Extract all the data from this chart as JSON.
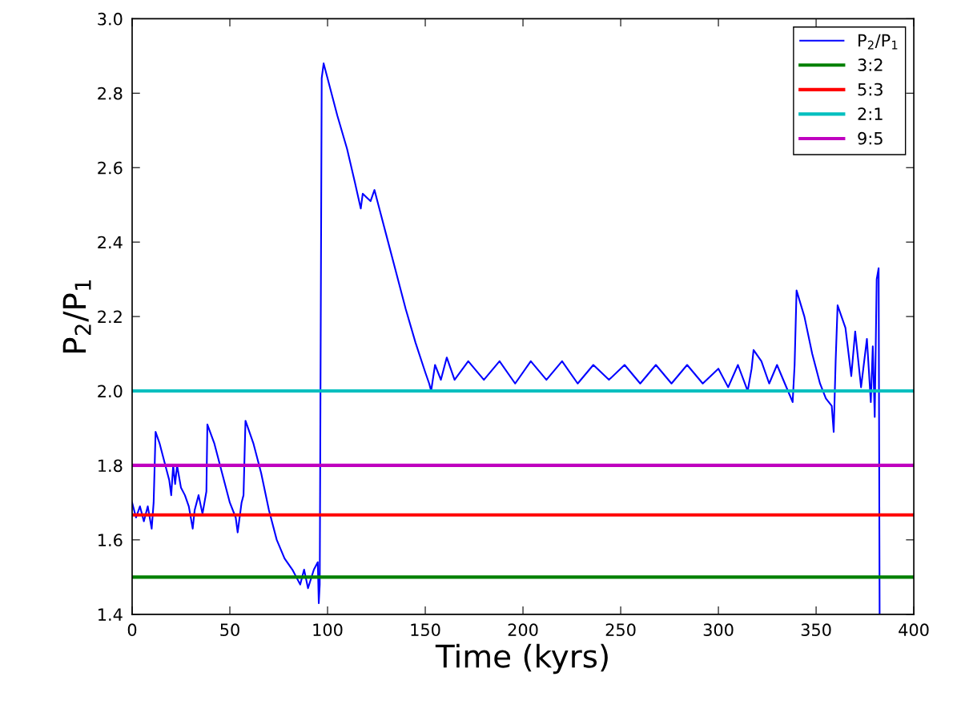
{
  "chart_data": {
    "type": "line",
    "xlabel": "Time (kyrs)",
    "ylabel": "P$_{2}$/P$_{1}$",
    "xlim": [
      0,
      400
    ],
    "ylim": [
      1.4,
      3.0
    ],
    "xticks": [
      0,
      50,
      100,
      150,
      200,
      250,
      300,
      350,
      400
    ],
    "yticks": [
      {
        "value": 1.4,
        "label": "1.4"
      },
      {
        "value": 1.6,
        "label": "1.6"
      },
      {
        "value": 1.8,
        "label": "1.8"
      },
      {
        "value": 2.0,
        "label": "2.0"
      },
      {
        "value": 2.2,
        "label": "2.2"
      },
      {
        "value": 2.4,
        "label": "2.4"
      },
      {
        "value": 2.6,
        "label": "2.6"
      },
      {
        "value": 2.8,
        "label": "2.8"
      },
      {
        "value": 3.0,
        "label": "3.0"
      }
    ],
    "grid": false,
    "legend": "top right",
    "series": [
      {
        "name": "P$_{2}$/P$_{1}$",
        "color": "#0000ff",
        "x": [
          0,
          2,
          4,
          6,
          8,
          10,
          11,
          12,
          14,
          17,
          19,
          20,
          21,
          22,
          23,
          25,
          27,
          29,
          31,
          32,
          34,
          36,
          38,
          38.5,
          42,
          46,
          50,
          53,
          54,
          56,
          57,
          58,
          62,
          66,
          70,
          74,
          78,
          82,
          86,
          88,
          90,
          93,
          95,
          95.5,
          96,
          97,
          98,
          100,
          105,
          110,
          114,
          117,
          118,
          120,
          122,
          124,
          126,
          130,
          135,
          140,
          145,
          150,
          152,
          153,
          155,
          158,
          161,
          165,
          172,
          180,
          188,
          196,
          204,
          212,
          220,
          228,
          236,
          244,
          252,
          260,
          268,
          276,
          284,
          292,
          300,
          305,
          310,
          315,
          317,
          318,
          322,
          326,
          330,
          334,
          338,
          339,
          340,
          344,
          348,
          352,
          355,
          358,
          359,
          360,
          361,
          365,
          368,
          370,
          373,
          376,
          378,
          379,
          380,
          381,
          382,
          382.5
        ],
        "values": [
          1.7,
          1.66,
          1.69,
          1.65,
          1.69,
          1.63,
          1.7,
          1.89,
          1.86,
          1.8,
          1.76,
          1.72,
          1.8,
          1.75,
          1.8,
          1.74,
          1.72,
          1.69,
          1.63,
          1.68,
          1.72,
          1.67,
          1.73,
          1.91,
          1.86,
          1.78,
          1.7,
          1.66,
          1.62,
          1.7,
          1.72,
          1.92,
          1.86,
          1.78,
          1.68,
          1.6,
          1.55,
          1.52,
          1.48,
          1.52,
          1.47,
          1.52,
          1.54,
          1.43,
          1.48,
          2.84,
          2.88,
          2.84,
          2.74,
          2.65,
          2.56,
          2.49,
          2.53,
          2.52,
          2.51,
          2.54,
          2.5,
          2.42,
          2.32,
          2.22,
          2.13,
          2.05,
          2.02,
          2.0,
          2.07,
          2.03,
          2.09,
          2.03,
          2.08,
          2.03,
          2.08,
          2.02,
          2.08,
          2.03,
          2.08,
          2.02,
          2.07,
          2.03,
          2.07,
          2.02,
          2.07,
          2.02,
          2.07,
          2.02,
          2.06,
          2.01,
          2.07,
          2.0,
          2.06,
          2.11,
          2.08,
          2.02,
          2.07,
          2.02,
          1.97,
          2.07,
          2.27,
          2.2,
          2.1,
          2.02,
          1.98,
          1.96,
          1.89,
          2.08,
          2.23,
          2.17,
          2.04,
          2.16,
          2.01,
          2.14,
          1.97,
          2.12,
          1.93,
          2.3,
          2.33,
          1.4
        ]
      },
      {
        "name": "3:2",
        "color": "#008000",
        "x": [
          0,
          400
        ],
        "values": [
          1.5,
          1.5
        ]
      },
      {
        "name": "5:3",
        "color": "#ff0000",
        "x": [
          0,
          400
        ],
        "values": [
          1.667,
          1.667
        ]
      },
      {
        "name": "2:1",
        "color": "#00bfbf",
        "x": [
          0,
          400
        ],
        "values": [
          2.0,
          2.0
        ]
      },
      {
        "name": "9:5",
        "color": "#bf00bf",
        "x": [
          0,
          400
        ],
        "values": [
          1.8,
          1.8
        ]
      }
    ]
  }
}
